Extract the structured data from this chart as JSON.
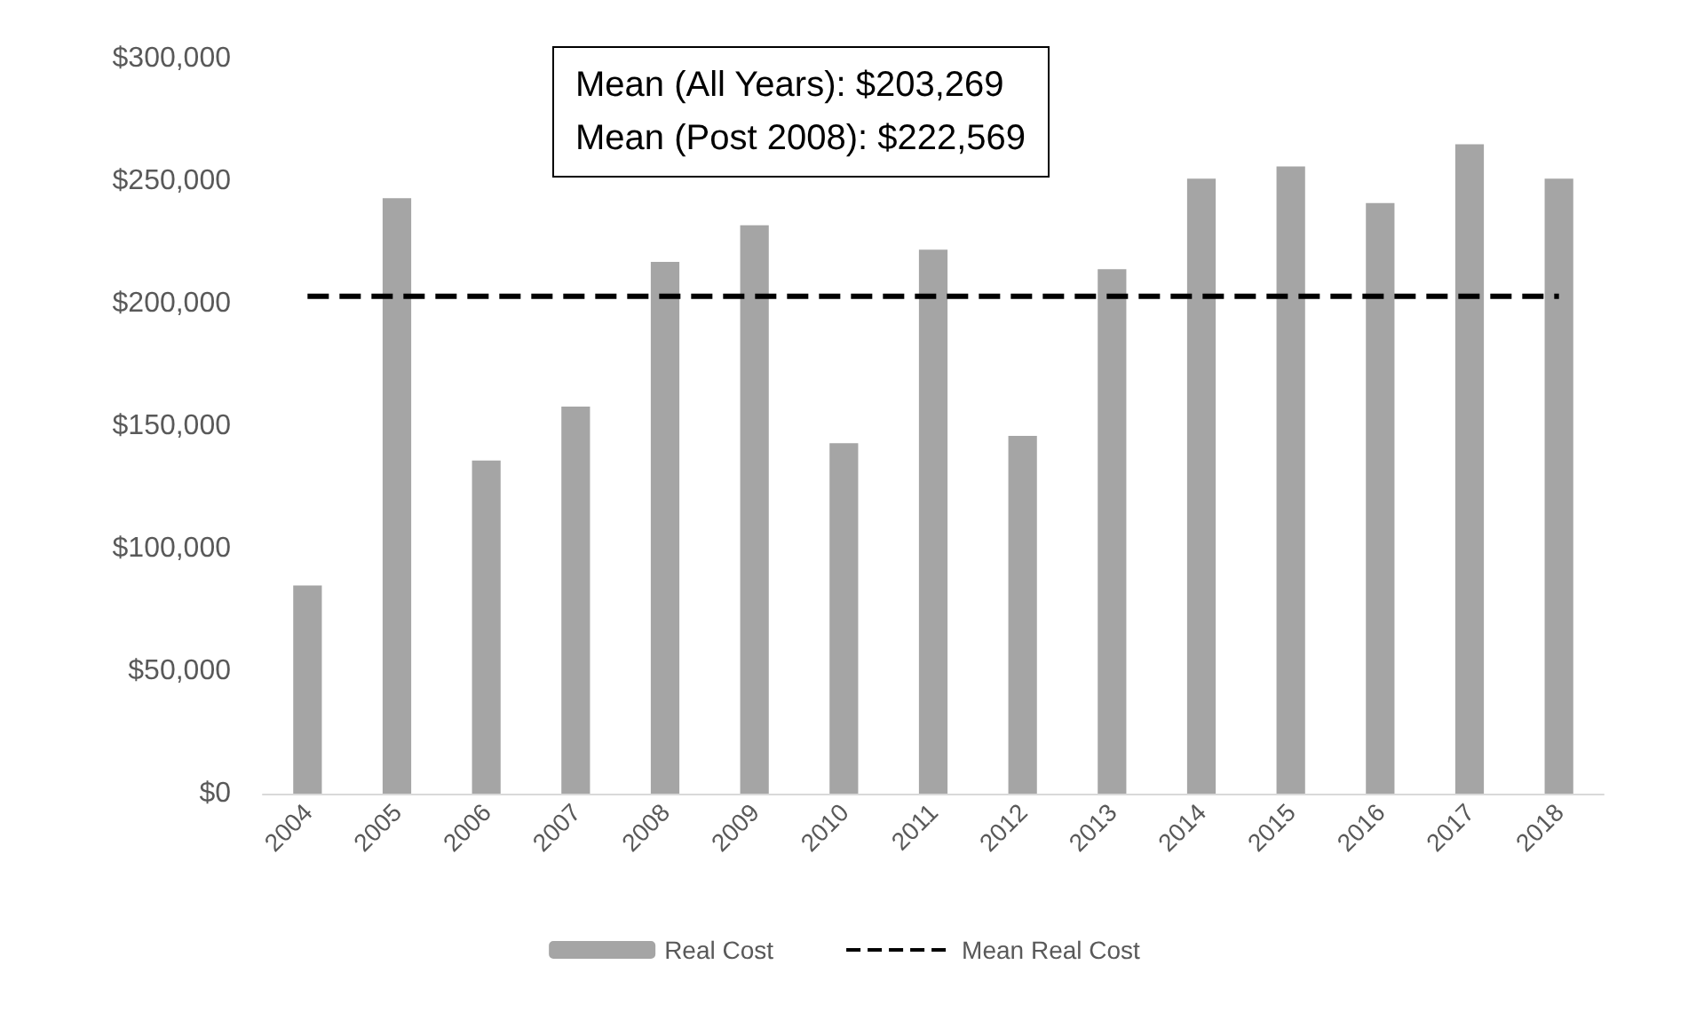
{
  "chart_data": {
    "type": "bar",
    "categories": [
      "2004",
      "2005",
      "2006",
      "2007",
      "2008",
      "2009",
      "2010",
      "2011",
      "2012",
      "2013",
      "2014",
      "2015",
      "2016",
      "2017",
      "2018"
    ],
    "series": [
      {
        "name": "Real Cost",
        "color": "#a5a5a5",
        "values": [
          85000,
          243000,
          136000,
          158000,
          217000,
          232000,
          143000,
          222000,
          146000,
          214000,
          251000,
          256000,
          241000,
          265000,
          251000
        ]
      },
      {
        "name": "Mean Real Cost",
        "type": "line",
        "color": "#000000",
        "line_style": "dashed",
        "marker": "none",
        "values": [
          203000,
          203000,
          203000,
          203000,
          203000,
          203000,
          203000,
          203000,
          203000,
          203000,
          203000,
          203000,
          203000,
          203000,
          203000
        ]
      }
    ],
    "ylim": [
      0,
      300000
    ],
    "yticks": [
      {
        "value": 0,
        "label": "$0"
      },
      {
        "value": 50000,
        "label": "$50,000"
      },
      {
        "value": 100000,
        "label": "$100,000"
      },
      {
        "value": 150000,
        "label": "$150,000"
      },
      {
        "value": 200000,
        "label": "$200,000"
      },
      {
        "value": 250000,
        "label": "$250,000"
      },
      {
        "value": 300000,
        "label": "$300,000"
      }
    ],
    "annotations": [
      "Mean (All Years): $203,269",
      "Mean (Post 2008): $222,569"
    ],
    "grid": false,
    "legend": "bottom"
  }
}
